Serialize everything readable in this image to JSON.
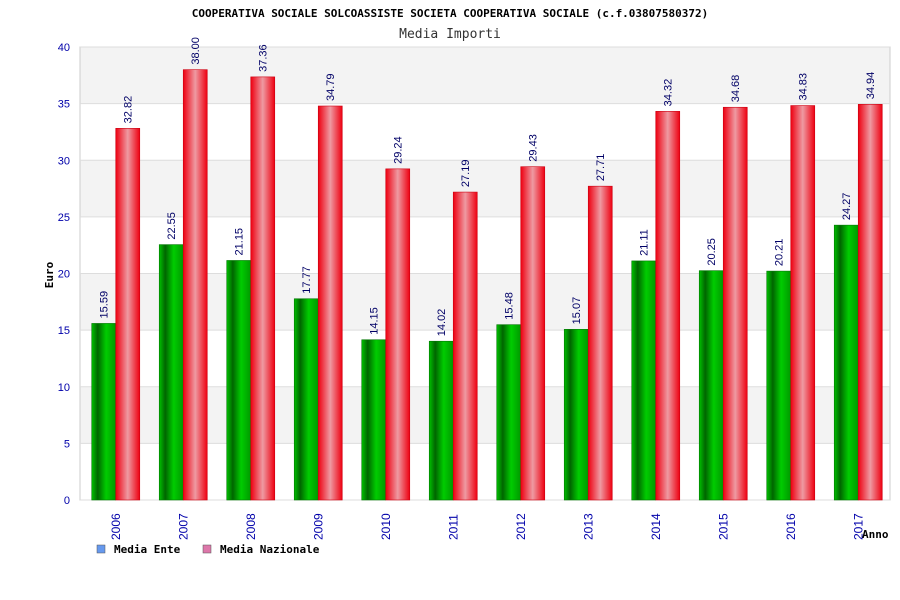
{
  "chart_data": {
    "type": "bar",
    "title": "COOPERATIVA SOCIALE SOLCOASSISTE SOCIETA COOPERATIVA SOCIALE (c.f.03807580372)",
    "subtitle": "Media Importi",
    "xlabel": "Anno",
    "ylabel": "Euro",
    "ylim": [
      0,
      40
    ],
    "yticks": [
      "0",
      "5",
      "10",
      "15",
      "20",
      "25",
      "30",
      "35",
      "40"
    ],
    "grid": true,
    "legend_position": "bottom-left",
    "categories": [
      "2006",
      "2007",
      "2008",
      "2009",
      "2010",
      "2011",
      "2012",
      "2013",
      "2014",
      "2015",
      "2016",
      "2017"
    ],
    "series": [
      {
        "name": "Media Ente",
        "color": "#00aa00",
        "legend_color": "#6699ee",
        "values": [
          15.59,
          22.55,
          21.15,
          17.77,
          14.15,
          14.02,
          15.48,
          15.07,
          21.11,
          20.25,
          20.21,
          24.27
        ],
        "labels": [
          "15.59",
          "22.55",
          "21.15",
          "17.77",
          "14.15",
          "14.02",
          "15.48",
          "15.07",
          "21.11",
          "20.25",
          "20.21",
          "24.27"
        ]
      },
      {
        "name": "Media Nazionale",
        "color": "#ee1122",
        "legend_color": "#dd77aa",
        "values": [
          32.82,
          38.0,
          37.36,
          34.79,
          29.24,
          27.19,
          29.43,
          27.71,
          34.32,
          34.68,
          34.83,
          34.94
        ],
        "labels": [
          "32.82",
          "38.00",
          "37.36",
          "34.79",
          "29.24",
          "27.19",
          "29.43",
          "27.71",
          "34.32",
          "34.68",
          "34.83",
          "34.94"
        ]
      }
    ]
  }
}
